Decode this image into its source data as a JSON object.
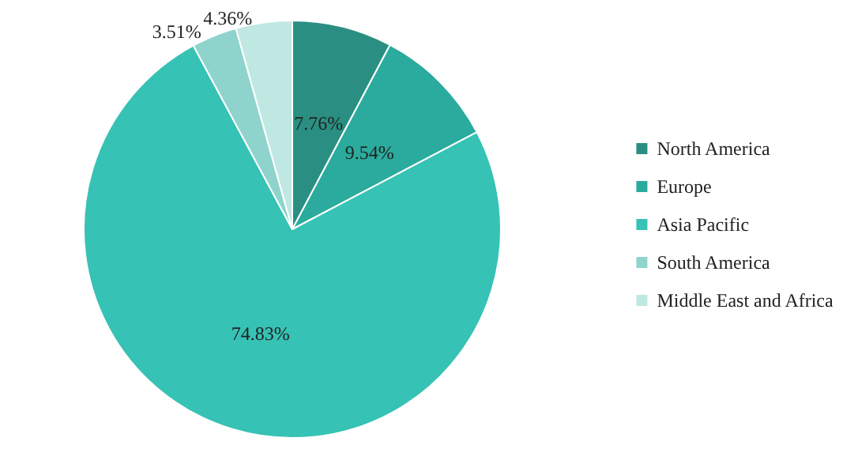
{
  "chart_data": {
    "type": "pie",
    "categories": [
      "North America",
      "Europe",
      "Asia Pacific",
      "South America",
      "Middle East and Africa"
    ],
    "values": [
      7.76,
      9.54,
      74.83,
      3.51,
      4.36
    ],
    "value_labels": [
      "7.76%",
      "9.54%",
      "74.83%",
      "3.51%",
      "4.36%"
    ],
    "colors": [
      "#2a8f82",
      "#2aab9d",
      "#36c2b4",
      "#8fd4cc",
      "#c0e8e3"
    ],
    "legend": "right"
  }
}
